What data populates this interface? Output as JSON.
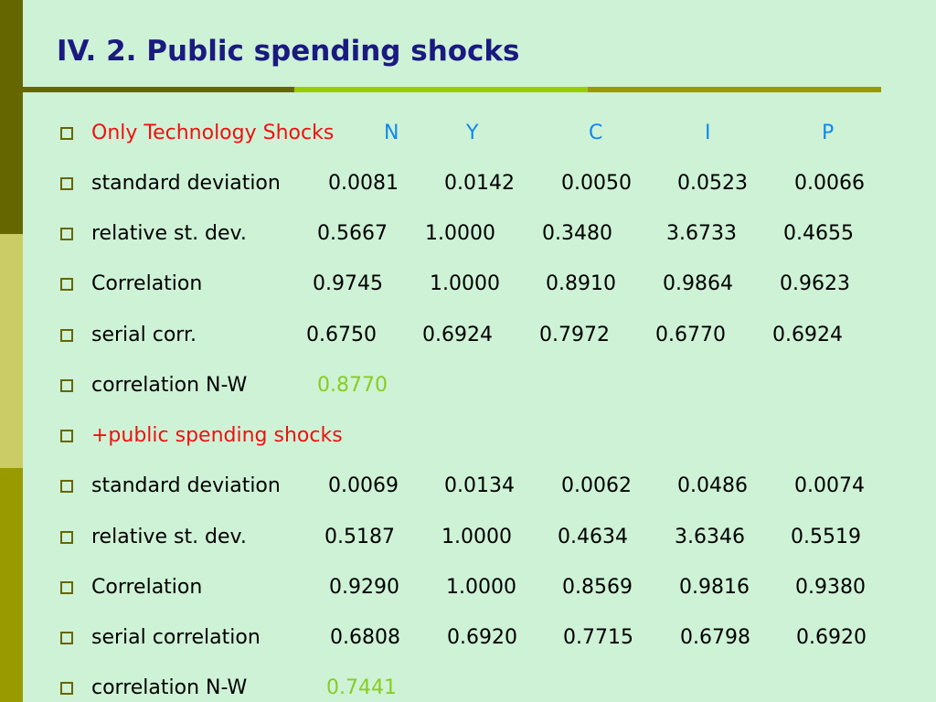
{
  "title": "IV.  2. Public spending shocks",
  "rows": [
    {
      "label": "Only Technology Shocks",
      "values": [
        "N",
        "Y",
        "C",
        "I",
        "P"
      ]
    },
    {
      "label": "standard deviation",
      "values": [
        "0.0081",
        "0.0142",
        "0.0050",
        "0.0523",
        "0.0066"
      ]
    },
    {
      "label": "relative st. dev.",
      "values": [
        "0.5667",
        "1.0000",
        "0.3480",
        "3.6733",
        "0.4655"
      ]
    },
    {
      "label": "Correlation",
      "values": [
        "0.9745",
        "1.0000",
        "0.8910",
        "0.9864",
        "0.9623"
      ]
    },
    {
      "label": "serial corr.",
      "values": [
        "0.6750",
        "0.6924",
        "0.7972",
        "0.6770",
        "0.6924"
      ]
    },
    {
      "label": "correlation N-W",
      "values": [
        "0.8770"
      ]
    },
    {
      "label": "+public spending shocks",
      "values": []
    },
    {
      "label": "standard deviation",
      "values": [
        "0.0069",
        "0.0134",
        "0.0062",
        "0.0486",
        "0.0074"
      ]
    },
    {
      "label": "relative st. dev.",
      "values": [
        "0.5187",
        "1.0000",
        "0.4634",
        "3.6346",
        "0.5519"
      ]
    },
    {
      "label": "Correlation",
      "values": [
        "0.9290",
        "1.0000",
        "0.8569",
        "0.9816",
        "0.9380"
      ]
    },
    {
      "label": "serial correlation",
      "values": [
        "0.6808",
        "0.6920",
        "0.7715",
        "0.6798",
        "0.6920"
      ]
    },
    {
      "label": "correlation N-W",
      "values": [
        "0.7441"
      ]
    }
  ],
  "colors": {
    "background": "#cef2d6",
    "title": "#1a1a80",
    "section_label": "#ee1111",
    "variable_header": "#1188ee",
    "nw_value": "#88cc22",
    "bullet": "#666600"
  }
}
